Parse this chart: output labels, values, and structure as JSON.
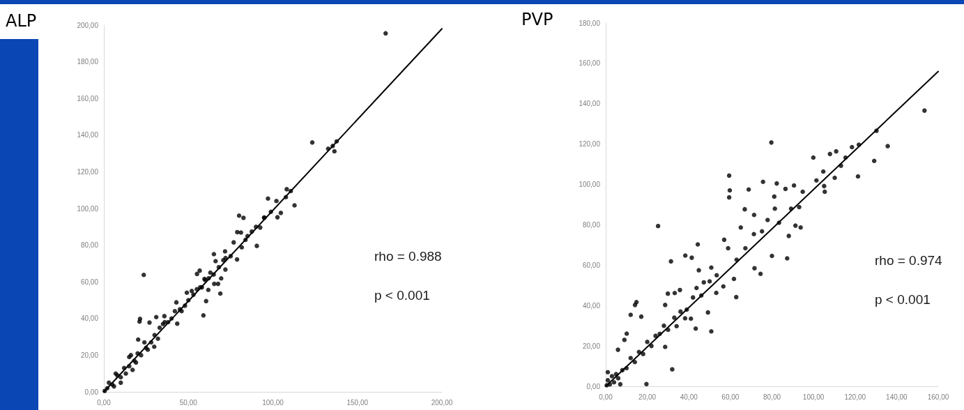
{
  "chart_data": [
    {
      "type": "scatter",
      "title": "ALP",
      "annotations": [
        "rho = 0.988",
        "p < 0.001"
      ],
      "xlim": [
        0,
        200
      ],
      "ylim": [
        0,
        200
      ],
      "xticks": [
        {
          "value": 0,
          "label": "0,00"
        },
        {
          "value": 50,
          "label": "50,00"
        },
        {
          "value": 100,
          "label": "100,00"
        },
        {
          "value": 150,
          "label": "150,00"
        },
        {
          "value": 200,
          "label": "200,00"
        }
      ],
      "yticks": [
        {
          "value": 0,
          "label": "0,00"
        },
        {
          "value": 20,
          "label": "20,00"
        },
        {
          "value": 40,
          "label": "40,00"
        },
        {
          "value": 60,
          "label": "60,00"
        },
        {
          "value": 80,
          "label": "80,00"
        },
        {
          "value": 100,
          "label": "100,00"
        },
        {
          "value": 120,
          "label": "120,00"
        },
        {
          "value": 140,
          "label": "140,00"
        },
        {
          "value": 160,
          "label": "160,00"
        },
        {
          "value": 180,
          "label": "180,00"
        },
        {
          "value": 200,
          "label": "200,00"
        }
      ],
      "series": [
        {
          "marker": "circle",
          "color": "#000000",
          "x": [
            166.7,
            123.3,
            132.7,
            135.4,
            136.4,
            137.7,
            108.2,
            110.6,
            112.8,
            97.1,
            102.1,
            107.7,
            98.8,
            102.7,
            104.7,
            80.0,
            82.6,
            78.9,
            81.1,
            87.5,
            90.5,
            94.8,
            92.5,
            78.8,
            76.8,
            81.6,
            83.8,
            65.1,
            71.7,
            70.7,
            71.9,
            68.9,
            67.6,
            69.4,
            65.3,
            66.1,
            56.7,
            55.1,
            61.8,
            60.5,
            58.9,
            59.5,
            49.1,
            42.9,
            43.4,
            23.6,
            21.4,
            21.1,
            31.0,
            27.0,
            35.8,
            20.3,
            29.8,
            5,
            8,
            10,
            12,
            15,
            15,
            18,
            20,
            22,
            25,
            28,
            30,
            33,
            35,
            38,
            40,
            45,
            48,
            50,
            53,
            55,
            58,
            62,
            65,
            68,
            72,
            75,
            85,
            90,
            95,
            0.5,
            2,
            3,
            6,
            7,
            10,
            13,
            16,
            17,
            19,
            24,
            26,
            32,
            36,
            42,
            46,
            52,
            57,
            60,
            63
          ],
          "values": [
            195.5,
            136.0,
            132.6,
            134.1,
            131.2,
            136.6,
            110.5,
            109.5,
            101.7,
            105.4,
            104.1,
            106.2,
            98.2,
            95.2,
            97.6,
            96.1,
            94.9,
            87.1,
            86.9,
            87.4,
            79.6,
            95.0,
            89.6,
            72.2,
            81.5,
            78.8,
            82.9,
            75.1,
            76.6,
            71.8,
            66.7,
            53.6,
            58.9,
            61.9,
            58.9,
            71.3,
            66.1,
            64.3,
            55.6,
            49.5,
            41.7,
            61.6,
            54.1,
            48.8,
            37.2,
            63.8,
            39.8,
            38.3,
            40.8,
            37.8,
            41.3,
            28.5,
            24.6,
            4,
            9,
            8,
            13,
            14,
            19,
            17,
            21,
            20,
            24,
            27,
            31,
            35,
            37,
            38,
            40,
            45,
            47,
            50,
            53,
            56,
            57,
            62,
            64,
            68,
            73,
            74,
            85,
            90,
            95,
            0.5,
            2,
            5,
            3,
            10,
            5,
            10,
            20,
            12,
            16,
            27,
            23,
            29,
            38,
            44,
            44,
            55,
            57,
            61,
            65
          ]
        },
        {
          "type": "line",
          "marker": "none",
          "color": "#000000",
          "x": [
            0,
            200
          ],
          "values": [
            0,
            198
          ]
        }
      ]
    },
    {
      "type": "scatter",
      "title": "PVP",
      "annotations": [
        "rho = 0.974",
        "p < 0.001"
      ],
      "xlim": [
        0,
        160
      ],
      "ylim": [
        0,
        180
      ],
      "xticks": [
        {
          "value": 0,
          "label": "0,00"
        },
        {
          "value": 20,
          "label": "20,00"
        },
        {
          "value": 40,
          "label": "40,00"
        },
        {
          "value": 60,
          "label": "60,00"
        },
        {
          "value": 80,
          "label": "80,00"
        },
        {
          "value": 100,
          "label": "100,00"
        },
        {
          "value": 120,
          "label": "120,00"
        },
        {
          "value": 140,
          "label": "140,00"
        },
        {
          "value": 160,
          "label": "160,00"
        }
      ],
      "yticks": [
        {
          "value": 0,
          "label": "0,00"
        },
        {
          "value": 20,
          "label": "20,00"
        },
        {
          "value": 40,
          "label": "40,00"
        },
        {
          "value": 60,
          "label": "60,00"
        },
        {
          "value": 80,
          "label": "80,00"
        },
        {
          "value": 100,
          "label": "100,00"
        },
        {
          "value": 120,
          "label": "120,00"
        },
        {
          "value": 140,
          "label": "140,00"
        },
        {
          "value": 160,
          "label": "160,00"
        },
        {
          "value": 180,
          "label": "180,00"
        }
      ],
      "series": [
        {
          "marker": "circle",
          "color": "#000000",
          "x": [
            153.4,
            130.3,
            135.7,
            129.2,
            121.4,
            121.8,
            118.5,
            110.9,
            107.9,
            99.9,
            113.2,
            110.2,
            104.7,
            105.4,
            101.4,
            79.7,
            75.7,
            82.3,
            90.6,
            59.4,
            59.7,
            59.4,
            68.8,
            66.9,
            81.1,
            86.5,
            93.1,
            91.3,
            93.8,
            87.3,
            88.1,
            71.4,
            80.0,
            74.5,
            71.6,
            62.8,
            57.0,
            65.0,
            25.2,
            31.4,
            38.3,
            41.4,
            44.3,
            44.8,
            50.8,
            50.8,
            43.3,
            49.2,
            32.0,
            19.6,
            14.1,
            14.8,
            12.0,
            17.1,
            10.1,
            9.0,
            5.9,
            28.6,
            29.9,
            33.2,
            35.7,
            34.1,
            38.2,
            41.0,
            28.6,
            43.7,
            47.2,
            53.4,
            53.2,
            56.6,
            61.7,
            58.9,
            63.0,
            67.2,
            71.3,
            75.2,
            77.9,
            81.4,
            83.4,
            89.2,
            94.8,
            105.1,
            115.4,
            0.5,
            1,
            2,
            3,
            4,
            5,
            6,
            8,
            10,
            12,
            14,
            16,
            18,
            20,
            22,
            24,
            26,
            28,
            30,
            33,
            36,
            39,
            42,
            46,
            50,
            1,
            7
          ],
          "values": [
            136.6,
            126.6,
            119.0,
            111.7,
            104.0,
            119.7,
            118.5,
            116.4,
            115.1,
            113.3,
            109.3,
            103.3,
            106.4,
            96.4,
            102.0,
            120.8,
            101.3,
            100.5,
            99.5,
            104.4,
            97.1,
            93.6,
            97.5,
            87.7,
            94.0,
            97.8,
            88.8,
            79.6,
            78.7,
            63.4,
            74.5,
            84.9,
            64.6,
            55.7,
            58.5,
            44.2,
            72.6,
            78.7,
            79.4,
            61.9,
            64.8,
            63.7,
            70.3,
            57.5,
            58.8,
            27.2,
            28.6,
            36.6,
            8.4,
            1.1,
            40.3,
            41.7,
            35.4,
            34.5,
            26.1,
            23.0,
            18.1,
            19.5,
            45.9,
            46.2,
            47.7,
            29.8,
            33.7,
            33.5,
            40.3,
            48.7,
            51.5,
            55.0,
            46.3,
            49.5,
            53.2,
            68.4,
            62.7,
            68.4,
            75.4,
            76.8,
            82.4,
            88.0,
            81.0,
            88.0,
            96.4,
            99.2,
            113.3,
            0.5,
            3,
            1,
            5,
            2,
            6,
            4,
            8,
            9,
            14,
            12,
            17,
            16,
            22,
            20,
            25,
            26,
            30,
            28,
            34,
            37,
            38,
            44,
            45,
            52,
            7,
            1
          ]
        },
        {
          "type": "line",
          "marker": "none",
          "color": "#000000",
          "x": [
            0,
            160
          ],
          "values": [
            0,
            156
          ]
        }
      ]
    }
  ]
}
